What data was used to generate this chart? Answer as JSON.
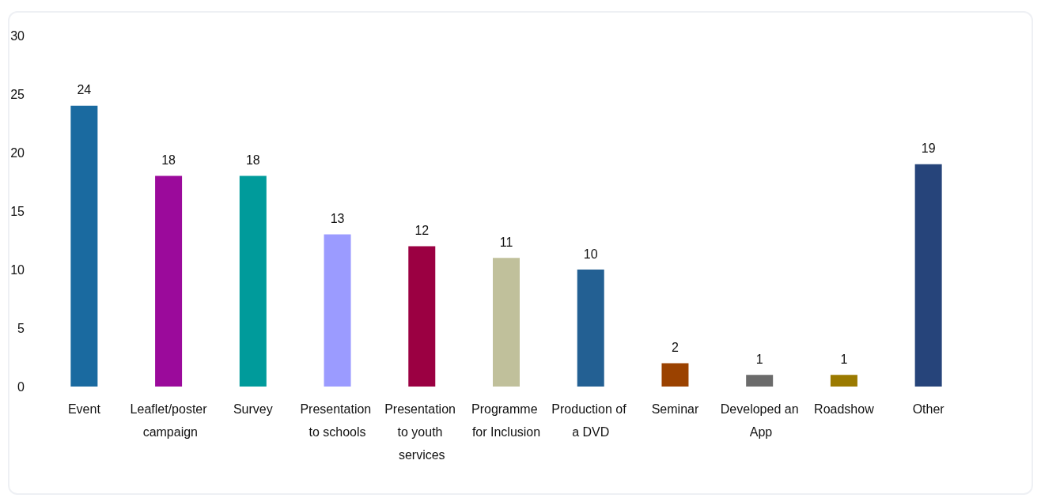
{
  "chart_data": {
    "type": "bar",
    "categories": [
      "Event",
      "Leaflet/poster campaign",
      "Survey",
      "Presentation to schools",
      "Presentation to youth services",
      "Programme for Inclusion",
      "Production of a DVD",
      "Seminar",
      "Developed an App",
      "Roadshow",
      "Other"
    ],
    "values": [
      24,
      18,
      18,
      13,
      12,
      11,
      10,
      2,
      1,
      1,
      19
    ],
    "colors": [
      "#1a6aa0",
      "#9b0a9b",
      "#009b9b",
      "#9b9bff",
      "#9b0042",
      "#c0c09b",
      "#236093",
      "#9b4200",
      "#6b6b6b",
      "#9b7a00",
      "#26447a"
    ],
    "ylim": [
      0,
      30
    ],
    "yticks": [
      0,
      5,
      10,
      15,
      20,
      25,
      30
    ],
    "data_labels": true
  }
}
